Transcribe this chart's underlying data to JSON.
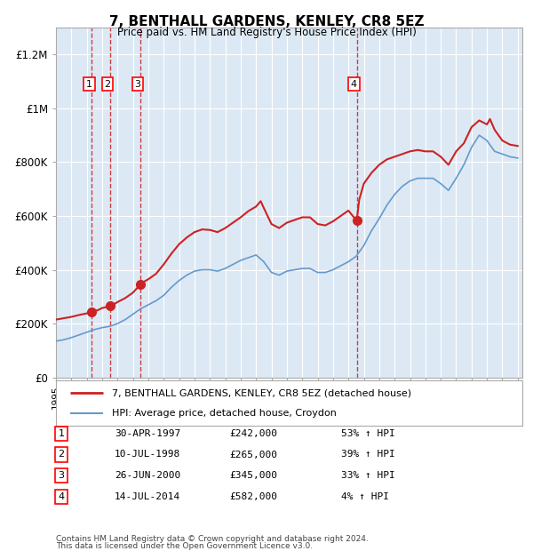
{
  "title": "7, BENTHALL GARDENS, KENLEY, CR8 5EZ",
  "subtitle": "Price paid vs. HM Land Registry's House Price Index (HPI)",
  "background_color": "#dce9f5",
  "plot_bg_color": "#dce9f5",
  "hpi_line_color": "#6699cc",
  "price_line_color": "#cc2222",
  "sale_marker_color": "#cc2222",
  "vline_color": "#cc2222",
  "ylim": [
    0,
    1300000
  ],
  "xlim_start": 1995.0,
  "xlim_end": 2025.3,
  "yticks": [
    0,
    200000,
    400000,
    600000,
    800000,
    1000000,
    1200000
  ],
  "ytick_labels": [
    "£0",
    "£200K",
    "£400K",
    "£600K",
    "£800K",
    "£1M",
    "£1.2M"
  ],
  "sales": [
    {
      "num": 1,
      "date": 1997.33,
      "price": 242000,
      "label": "30-APR-1997",
      "hpi_pct": "53%",
      "direction": "↑"
    },
    {
      "num": 2,
      "date": 1998.53,
      "price": 265000,
      "label": "10-JUL-1998",
      "hpi_pct": "39%",
      "direction": "↑"
    },
    {
      "num": 3,
      "date": 2000.48,
      "price": 345000,
      "label": "26-JUN-2000",
      "hpi_pct": "33%",
      "direction": "↑"
    },
    {
      "num": 4,
      "date": 2014.54,
      "price": 582000,
      "label": "14-JUL-2014",
      "hpi_pct": "4%",
      "direction": "↑"
    }
  ],
  "legend_property_label": "7, BENTHALL GARDENS, KENLEY, CR8 5EZ (detached house)",
  "legend_hpi_label": "HPI: Average price, detached house, Croydon",
  "footer_line1": "Contains HM Land Registry data © Crown copyright and database right 2024.",
  "footer_line2": "This data is licensed under the Open Government Licence v3.0.",
  "hpi_years": [
    1995.0,
    1995.5,
    1996.0,
    1996.5,
    1997.0,
    1997.5,
    1998.0,
    1998.5,
    1999.0,
    1999.5,
    2000.0,
    2000.5,
    2001.0,
    2001.5,
    2002.0,
    2002.5,
    2003.0,
    2003.5,
    2004.0,
    2004.5,
    2005.0,
    2005.5,
    2006.0,
    2006.5,
    2007.0,
    2007.5,
    2008.0,
    2008.5,
    2009.0,
    2009.5,
    2010.0,
    2010.5,
    2011.0,
    2011.5,
    2012.0,
    2012.5,
    2013.0,
    2013.5,
    2014.0,
    2014.5,
    2015.0,
    2015.5,
    2016.0,
    2016.5,
    2017.0,
    2017.5,
    2018.0,
    2018.5,
    2019.0,
    2019.5,
    2020.0,
    2020.5,
    2021.0,
    2021.5,
    2022.0,
    2022.5,
    2023.0,
    2023.5,
    2024.0,
    2024.5,
    2025.0
  ],
  "hpi_vals": [
    135000,
    140000,
    148000,
    158000,
    168000,
    178000,
    185000,
    190000,
    200000,
    215000,
    235000,
    255000,
    270000,
    285000,
    305000,
    335000,
    360000,
    380000,
    395000,
    400000,
    400000,
    395000,
    405000,
    420000,
    435000,
    445000,
    455000,
    430000,
    390000,
    380000,
    395000,
    400000,
    405000,
    405000,
    390000,
    390000,
    400000,
    415000,
    430000,
    450000,
    490000,
    545000,
    590000,
    640000,
    680000,
    710000,
    730000,
    740000,
    740000,
    740000,
    720000,
    695000,
    740000,
    790000,
    855000,
    900000,
    880000,
    840000,
    830000,
    820000,
    815000
  ],
  "prop_years": [
    1995.0,
    1995.5,
    1996.0,
    1996.5,
    1997.0,
    1997.33,
    1997.5,
    1997.8,
    1998.0,
    1998.53,
    1998.7,
    1999.0,
    1999.5,
    2000.0,
    2000.48,
    2000.7,
    2001.0,
    2001.5,
    2002.0,
    2002.5,
    2003.0,
    2003.5,
    2004.0,
    2004.5,
    2005.0,
    2005.5,
    2006.0,
    2006.5,
    2007.0,
    2007.5,
    2008.0,
    2008.3,
    2008.5,
    2009.0,
    2009.5,
    2010.0,
    2010.5,
    2011.0,
    2011.5,
    2012.0,
    2012.5,
    2013.0,
    2013.5,
    2014.0,
    2014.54,
    2014.7,
    2015.0,
    2015.5,
    2016.0,
    2016.5,
    2017.0,
    2017.5,
    2018.0,
    2018.5,
    2019.0,
    2019.5,
    2020.0,
    2020.5,
    2021.0,
    2021.5,
    2022.0,
    2022.5,
    2023.0,
    2023.2,
    2023.5,
    2024.0,
    2024.5,
    2025.0
  ],
  "prop_vals": [
    215000,
    220000,
    225000,
    232000,
    238000,
    242000,
    246000,
    252000,
    258000,
    265000,
    270000,
    280000,
    295000,
    315000,
    345000,
    355000,
    365000,
    385000,
    420000,
    460000,
    495000,
    520000,
    540000,
    550000,
    548000,
    540000,
    555000,
    575000,
    595000,
    618000,
    635000,
    655000,
    630000,
    570000,
    555000,
    575000,
    585000,
    595000,
    595000,
    570000,
    565000,
    580000,
    600000,
    620000,
    582000,
    660000,
    720000,
    760000,
    790000,
    810000,
    820000,
    830000,
    840000,
    845000,
    840000,
    840000,
    820000,
    790000,
    840000,
    870000,
    930000,
    955000,
    940000,
    960000,
    920000,
    880000,
    865000,
    860000
  ]
}
